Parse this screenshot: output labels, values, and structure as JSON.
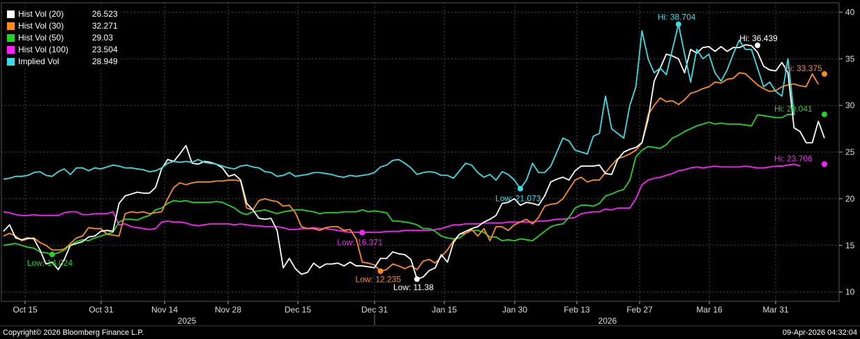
{
  "legend": [
    {
      "name": "Hist Vol (20)",
      "value": "26.523",
      "color": "#ffffff"
    },
    {
      "name": "Hist Vol (30)",
      "value": "32.271",
      "color": "#ff8c1a"
    },
    {
      "name": "Hist Vol (50)",
      "value": "29.03",
      "color": "#1fd61f"
    },
    {
      "name": "Hist Vol (100)",
      "value": "23.504",
      "color": "#ff1fff"
    },
    {
      "name": "Implied Vol",
      "value": "28.949",
      "color": "#33e0e8"
    }
  ],
  "footer": {
    "copyright": "Copyright© 2026 Bloomberg Finance L.P.",
    "timestamp": "09-Apr-2026 04:32:04"
  },
  "chart_data": {
    "type": "line",
    "y_range": [
      9,
      41
    ],
    "y_ticks": [
      10,
      15,
      20,
      25,
      30,
      35,
      40
    ],
    "x_ticks": [
      "Oct 15",
      "Oct 31",
      "Nov 14",
      "Nov 28",
      "Dec 15",
      "Dec 31",
      "Jan 15",
      "Jan 30",
      "Feb 13",
      "Feb 27",
      "Mar 16",
      "Mar 31"
    ],
    "years": [
      "2025",
      "2026"
    ],
    "grid": true,
    "series": [
      {
        "name": "Hist Vol (20)",
        "color": "#ffffff",
        "values": [
          16.5,
          17.2,
          15.8,
          15.6,
          15.8,
          15.7,
          14.5,
          13.0,
          13.2,
          12.4,
          13.5,
          15.0,
          15.2,
          15.4,
          15.9,
          16.0,
          16.5,
          16.6,
          16.5,
          19.5,
          20.3,
          20.5,
          20.7,
          20.6,
          20.6,
          21.2,
          23.2,
          24.2,
          24.0,
          24.8,
          25.7,
          23.8,
          23.7,
          24.0,
          23.9,
          23.7,
          23.3,
          22.4,
          22.6,
          22.0,
          19.5,
          18.8,
          17.9,
          17.8,
          17.9,
          16.6,
          12.6,
          13.6,
          12.5,
          11.9,
          12.1,
          13.1,
          12.6,
          13.0,
          13.0,
          13.1,
          12.8,
          13.2,
          12.8,
          12.8,
          12.7,
          12.6,
          13.6,
          13.6,
          14.3,
          14.1,
          14.0,
          13.5,
          11.38,
          11.6,
          12.3,
          12.6,
          14.0,
          13.2,
          15.3,
          16.2,
          16.5,
          16.8,
          17.0,
          17.5,
          17.8,
          18.2,
          19.5,
          19.6,
          20.0,
          19.3,
          19.6,
          19.5,
          19.3,
          20.3,
          21.8,
          22.1,
          22.3,
          22.0,
          23.0,
          23.5,
          23.5,
          23.5,
          23.6,
          22.7,
          22.6,
          24.2,
          25.0,
          25.3,
          25.5,
          26.0,
          28.5,
          32.6,
          34.0,
          35.5,
          35.3,
          35.0,
          33.5,
          36.0,
          35.6,
          36.2,
          36.3,
          35.8,
          36.3,
          35.8,
          36.2,
          36.2,
          36.5,
          36.4,
          35.7,
          34.2,
          33.8,
          33.7,
          34.6,
          33.5,
          27.6,
          27.2,
          26.0,
          26.0,
          28.3,
          26.5
        ]
      },
      {
        "name": "Hist Vol (30)",
        "color": "#ff8c1a",
        "values": [
          16.0,
          16.3,
          16.0,
          15.5,
          15.7,
          15.8,
          15.3,
          15.0,
          14.5,
          14.5,
          14.6,
          15.2,
          15.8,
          16.0,
          16.9,
          16.8,
          16.8,
          16.2,
          16.1,
          16.0,
          18.4,
          18.6,
          18.5,
          18.6,
          18.4,
          18.5,
          18.6,
          20.0,
          21.2,
          21.7,
          21.5,
          21.7,
          21.8,
          21.8,
          21.8,
          21.9,
          21.9,
          22.0,
          22.0,
          21.9,
          19.0,
          18.8,
          19.8,
          20.0,
          19.8,
          19.7,
          19.2,
          19.3,
          18.5,
          17.0,
          16.8,
          16.8,
          16.6,
          16.9,
          17.0,
          17.0,
          16.6,
          16.7,
          15.7,
          13.2,
          13.1,
          12.9,
          12.235,
          12.4,
          13.0,
          12.8,
          12.5,
          12.8,
          12.4,
          13.3,
          13.5,
          13.1,
          13.8,
          14.5,
          15.5,
          16.2,
          16.3,
          16.7,
          16.0,
          16.8,
          15.5,
          17.0,
          17.0,
          16.6,
          17.2,
          17.5,
          17.8,
          17.3,
          18.0,
          19.2,
          19.4,
          19.5,
          20.0,
          21.0,
          22.0,
          22.3,
          21.8,
          22.0,
          22.0,
          22.8,
          23.6,
          24.3,
          24.5,
          24.8,
          25.2,
          26.0,
          29.0,
          30.0,
          30.8,
          30.4,
          30.5,
          30.1,
          30.6,
          31.3,
          31.5,
          31.8,
          32.0,
          32.5,
          32.4,
          32.8,
          32.9,
          33.5,
          33.4,
          32.8,
          32.2,
          31.8,
          31.5,
          31.6,
          32.0,
          32.2,
          32.3,
          32.1,
          32.0,
          33.375,
          32.271
        ]
      },
      {
        "name": "Hist Vol (50)",
        "color": "#1fd61f",
        "values": [
          15.0,
          15.1,
          15.2,
          15.0,
          14.8,
          14.7,
          14.3,
          14.2,
          14.024,
          14.2,
          14.5,
          15.0,
          15.4,
          15.6,
          15.5,
          15.8,
          16.0,
          16.2,
          16.4,
          17.5,
          17.8,
          17.8,
          17.7,
          18.0,
          18.2,
          18.8,
          19.0,
          19.5,
          19.8,
          19.7,
          19.8,
          19.6,
          19.6,
          19.6,
          19.6,
          19.7,
          19.6,
          19.3,
          19.0,
          18.5,
          18.3,
          18.6,
          18.7,
          18.8,
          18.6,
          18.4,
          18.6,
          18.7,
          18.8,
          18.8,
          18.7,
          18.6,
          18.4,
          18.5,
          18.5,
          18.5,
          18.6,
          18.6,
          18.6,
          18.8,
          18.6,
          18.7,
          18.6,
          18.5,
          17.6,
          17.6,
          17.5,
          17.4,
          17.2,
          16.8,
          16.8,
          16.5,
          16.0,
          15.8,
          15.7,
          15.8,
          16.3,
          16.6,
          16.6,
          16.4,
          15.9,
          15.9,
          15.5,
          15.6,
          15.5,
          15.7,
          15.6,
          15.5,
          16.0,
          16.5,
          17.0,
          17.2,
          17.3,
          18.0,
          19.0,
          19.3,
          19.3,
          19.2,
          19.5,
          20.3,
          20.5,
          20.8,
          21.0,
          22.0,
          24.5,
          25.2,
          25.6,
          25.5,
          25.4,
          25.8,
          26.5,
          26.8,
          27.2,
          27.5,
          27.8,
          28.0,
          28.2,
          28.0,
          28.1,
          28.0,
          28.0,
          28.0,
          27.9,
          27.8,
          29.0,
          28.9,
          28.8,
          28.7,
          28.7,
          29.041,
          29.03
        ]
      },
      {
        "name": "Hist Vol (100)",
        "color": "#ff1fff",
        "values": [
          18.6,
          18.5,
          18.3,
          18.2,
          18.2,
          18.3,
          18.2,
          18.2,
          18.2,
          18.2,
          18.5,
          18.6,
          18.6,
          18.3,
          18.3,
          18.4,
          18.4,
          18.4,
          18.6,
          17.2,
          17.3,
          17.0,
          16.9,
          16.8,
          16.7,
          16.8,
          17.5,
          17.6,
          17.5,
          17.5,
          17.4,
          17.2,
          17.1,
          17.2,
          17.3,
          17.3,
          17.3,
          17.3,
          17.2,
          17.3,
          17.2,
          17.1,
          17.1,
          17.0,
          17.0,
          17.0,
          16.9,
          16.7,
          16.7,
          16.8,
          16.8,
          16.9,
          16.8,
          16.8,
          16.7,
          16.6,
          16.5,
          16.4,
          16.4,
          16.371,
          16.4,
          16.4,
          16.4,
          16.5,
          16.5,
          16.5,
          16.6,
          16.6,
          16.6,
          16.6,
          16.6,
          16.7,
          16.8,
          17.0,
          17.2,
          17.2,
          17.3,
          17.3,
          17.3,
          17.4,
          17.4,
          17.4,
          17.4,
          17.5,
          17.5,
          17.5,
          17.5,
          17.5,
          17.6,
          17.6,
          17.7,
          17.8,
          17.8,
          17.9,
          18.0,
          18.4,
          18.5,
          18.6,
          18.6,
          18.9,
          18.8,
          19.0,
          19.0,
          19.0,
          20.0,
          21.5,
          22.0,
          22.2,
          22.3,
          22.5,
          22.7,
          23.0,
          23.1,
          23.3,
          23.4,
          23.3,
          23.4,
          23.5,
          23.4,
          23.4,
          23.4,
          23.4,
          23.5,
          23.4,
          23.3,
          23.3,
          23.4,
          23.5,
          23.5,
          23.6,
          23.706,
          23.504
        ]
      },
      {
        "name": "Implied Vol",
        "color": "#33e0e8",
        "values": [
          22.1,
          22.2,
          22.4,
          22.4,
          22.5,
          22.8,
          22.9,
          22.5,
          22.4,
          22.9,
          23.2,
          22.6,
          23.3,
          23.3,
          23.0,
          23.3,
          23.2,
          23.4,
          23.6,
          23.5,
          23.3,
          23.3,
          23.2,
          23.1,
          22.9,
          23.0,
          23.3,
          23.8,
          24.0,
          23.9,
          24.0,
          23.9,
          24.2,
          23.9,
          23.8,
          23.7,
          23.5,
          23.3,
          23.2,
          23.5,
          23.6,
          23.4,
          23.3,
          22.9,
          22.8,
          22.4,
          22.5,
          22.8,
          22.4,
          22.5,
          22.6,
          22.8,
          22.8,
          22.7,
          22.6,
          22.4,
          22.3,
          22.5,
          22.4,
          22.5,
          22.6,
          22.8,
          23.4,
          23.6,
          24.1,
          24.2,
          23.8,
          23.3,
          22.6,
          22.8,
          22.9,
          22.8,
          22.5,
          22.5,
          22.2,
          23.0,
          23.8,
          23.6,
          22.8,
          22.3,
          22.6,
          22.0,
          22.9,
          22.6,
          22.0,
          21.073,
          22.0,
          23.8,
          22.8,
          22.8,
          23.5,
          25.0,
          26.5,
          26.2,
          25.2,
          25.0,
          24.8,
          26.7,
          27.0,
          31.0,
          27.5,
          27.0,
          26.5,
          30.0,
          32.0,
          38.0,
          35.0,
          33.5,
          34.0,
          33.3,
          36.0,
          38.704,
          35.5,
          32.5,
          36.0,
          35.0,
          35.5,
          33.5,
          32.6,
          33.8,
          35.5,
          37.0,
          36.0,
          36.0,
          34.0,
          32.0,
          32.5,
          31.5,
          31.0,
          35.0,
          28.949
        ]
      }
    ],
    "annotations": [
      {
        "text": "Hi: 38.704",
        "series": 4,
        "index": 111,
        "value": 38.704,
        "color": "#33e0e8"
      },
      {
        "text": "Hi: 36.439",
        "series": 0,
        "index": 124,
        "value": 36.439,
        "color": "#ffffff"
      },
      {
        "text": "Hi: 33.375",
        "series": 1,
        "index": 135,
        "value": 33.375,
        "color": "#ff8c1a"
      },
      {
        "text": "Hi: 29.041",
        "series": 2,
        "index": 135,
        "value": 29.041,
        "color": "#1fd61f"
      },
      {
        "text": "Hi: 23.706",
        "series": 3,
        "index": 135,
        "value": 23.706,
        "color": "#ff1fff"
      },
      {
        "text": "Low: 21.073",
        "series": 4,
        "index": 85,
        "value": 21.073,
        "color": "#33e0e8"
      },
      {
        "text": "Low: 16.371",
        "series": 3,
        "index": 59,
        "value": 16.371,
        "color": "#ff1fff"
      },
      {
        "text": "Low: 14.024",
        "series": 2,
        "index": 8,
        "value": 14.024,
        "color": "#1fd61f"
      },
      {
        "text": "Low: 12.235",
        "series": 1,
        "index": 62,
        "value": 12.235,
        "color": "#ff8c1a"
      },
      {
        "text": "Low: 11.38",
        "series": 0,
        "index": 68,
        "value": 11.38,
        "color": "#ffffff"
      }
    ]
  }
}
